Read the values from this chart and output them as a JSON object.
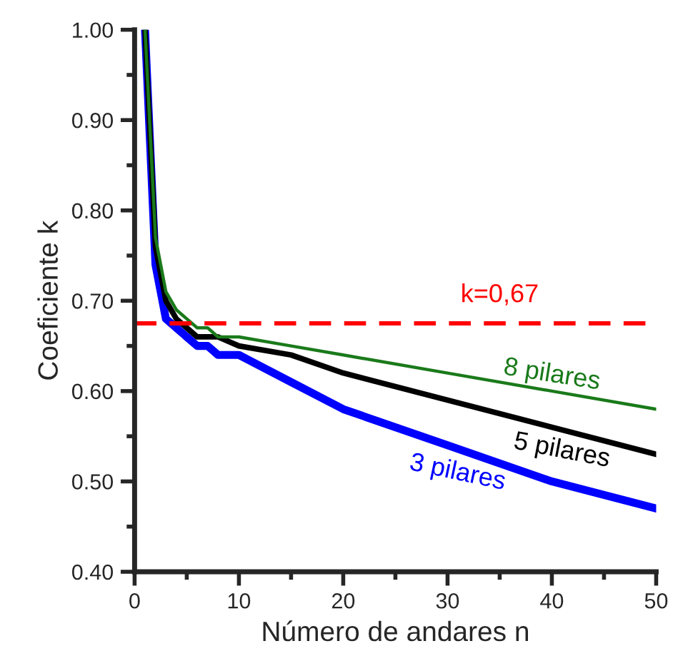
{
  "chart_data": {
    "type": "line",
    "xlabel": "Número de andares n",
    "ylabel": "Coeficiente k",
    "xlim": [
      0,
      50
    ],
    "xticks": [
      0,
      10,
      20,
      30,
      40,
      50
    ],
    "ylim": [
      0.4,
      1.0
    ],
    "yticks": [
      {
        "value": 0.4,
        "label": "0.40"
      },
      {
        "value": 0.5,
        "label": "0.50"
      },
      {
        "value": 0.6,
        "label": "0.60"
      },
      {
        "value": 0.7,
        "label": "0.70"
      },
      {
        "value": 0.8,
        "label": "0.80"
      },
      {
        "value": 0.9,
        "label": "0.90"
      },
      {
        "value": 1.0,
        "label": "1.00"
      }
    ],
    "x": [
      1,
      2,
      3,
      4,
      5,
      6,
      7,
      8,
      10,
      15,
      20,
      30,
      40,
      50
    ],
    "series": [
      {
        "name": "8 pilares",
        "color": "#1a7a1a",
        "values": [
          1.0,
          0.77,
          0.71,
          0.69,
          0.68,
          0.67,
          0.67,
          0.66,
          0.66,
          0.65,
          0.64,
          0.62,
          0.6,
          0.58
        ]
      },
      {
        "name": "5 pilares",
        "color": "#000000",
        "values": [
          1.0,
          0.76,
          0.7,
          0.68,
          0.67,
          0.66,
          0.66,
          0.66,
          0.65,
          0.64,
          0.62,
          0.59,
          0.56,
          0.53
        ]
      },
      {
        "name": "3 pilares",
        "color": "#0000ff",
        "values": [
          1.0,
          0.74,
          0.68,
          0.67,
          0.66,
          0.65,
          0.65,
          0.64,
          0.64,
          0.61,
          0.58,
          0.54,
          0.5,
          0.47
        ]
      }
    ],
    "ref_lines": [
      {
        "axis": "y",
        "value": 0.675,
        "label": "k=0,67",
        "color": "#ff0000",
        "line_style": "dashed"
      }
    ],
    "grid": false,
    "legend": false,
    "marker": "none",
    "line_style": "solid"
  }
}
